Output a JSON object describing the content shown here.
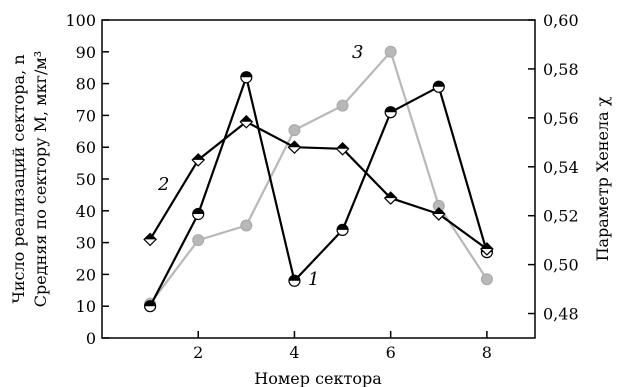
{
  "chart_data": {
    "type": "line",
    "xlabel": "Номер сектора",
    "ylabel_left_1": "Число реализаций сектора, n",
    "ylabel_left_2": "Средняя по сектору M, мкг/м³",
    "ylabel_right": "Параметр Хенела χ",
    "xlim": [
      0,
      9
    ],
    "ylim_left": [
      0,
      100
    ],
    "ylim_right": [
      0.47,
      0.6
    ],
    "x_ticks": [
      2,
      4,
      6,
      8
    ],
    "x_tick_labels": [
      "2",
      "4",
      "6",
      "8"
    ],
    "y_left_ticks": [
      0,
      10,
      20,
      30,
      40,
      50,
      60,
      70,
      80,
      90,
      100
    ],
    "y_left_tick_labels": [
      "0",
      "10",
      "20",
      "30",
      "40",
      "50",
      "60",
      "70",
      "80",
      "90",
      "100"
    ],
    "y_right_ticks": [
      0.48,
      0.5,
      0.52,
      0.54,
      0.56,
      0.58,
      0.6
    ],
    "y_right_tick_labels": [
      "0,48",
      "0,50",
      "0,52",
      "0,54",
      "0,56",
      "0,58",
      "0,60"
    ],
    "grid": false,
    "series": [
      {
        "label": "1",
        "axis": "left",
        "color": "#000000",
        "marker": "half-filled-circle-top",
        "x": [
          1,
          2,
          3,
          4,
          5,
          6,
          7,
          8
        ],
        "y": [
          10,
          39,
          82,
          18,
          34,
          71,
          79,
          27
        ]
      },
      {
        "label": "2",
        "axis": "left",
        "color": "#000000",
        "marker": "half-filled-diamond-top",
        "x": [
          1,
          2,
          3,
          4,
          5,
          6,
          7,
          8
        ],
        "y": [
          31,
          56,
          68,
          60,
          59.5,
          44,
          39,
          28
        ]
      },
      {
        "label": "3",
        "axis": "right",
        "color": "#b8b8b8",
        "marker": "filled-circle",
        "x": [
          1,
          2,
          3,
          4,
          5,
          6,
          7,
          8
        ],
        "y": [
          0.484,
          0.51,
          0.516,
          0.555,
          0.565,
          0.587,
          0.524,
          0.494
        ]
      }
    ]
  }
}
